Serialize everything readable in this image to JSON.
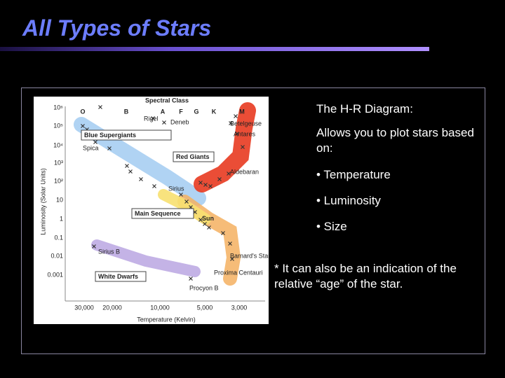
{
  "title": "All Types of Stars",
  "diagram": {
    "top_title": "Spectral Class",
    "spectral_classes": [
      "O",
      "B",
      "A",
      "F",
      "G",
      "K",
      "M"
    ],
    "y_axis_title": "Luminosity (Solar Units)",
    "y_labels": [
      "10⁶",
      "10⁵",
      "10⁴",
      "10³",
      "10²",
      "10",
      "1",
      "0.1",
      "0.01",
      "0.001"
    ],
    "x_axis_title": "Temperature (Kelvin)",
    "x_labels": [
      "30,000",
      "20,000",
      "10,000",
      "5,000",
      "3,000"
    ],
    "regions": [
      "Blue Supergiants",
      "Red Giants",
      "Main Sequence",
      "Sun",
      "White Dwarfs"
    ],
    "stars": [
      "Rigel",
      "Deneb",
      "Betelgeuse",
      "Antares",
      "Spica",
      "Aldebaran",
      "Sirius",
      "Sirius B",
      "Barnard's Star",
      "Proxima Centauri",
      "Procyon B"
    ]
  },
  "text": {
    "heading": "The H-R Diagram:",
    "intro": "Allows you to plot stars based on:",
    "bullets": [
      "• Temperature",
      "• Luminosity",
      "• Size"
    ],
    "note": "* It can also be an indication of the relative “age” of the star."
  }
}
